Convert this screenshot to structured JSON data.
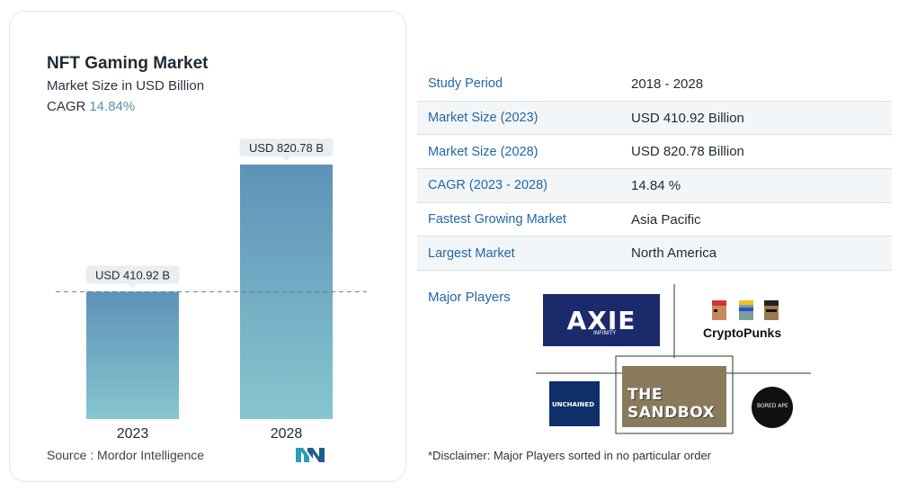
{
  "card": {
    "title": "NFT Gaming Market",
    "subtitle": "Market Size in USD Billion",
    "cagr_label": "CAGR",
    "cagr_value": "14.84%",
    "source": "Source :  Mordor Intelligence"
  },
  "chart_data": {
    "type": "bar",
    "categories": [
      "2023",
      "2028"
    ],
    "values": [
      410.92,
      820.78
    ],
    "data_labels": [
      "USD 410.92 B",
      "USD 820.78 B"
    ],
    "title": "NFT Gaming Market",
    "subtitle": "Market Size in USD Billion",
    "xlabel": "",
    "ylabel": "",
    "ylim": [
      0,
      820.78
    ],
    "grid": false,
    "reference_line": 410.92,
    "colors": {
      "bar_top": "#5e92b8",
      "bar_bottom": "#86c6cf",
      "label_bg": "#e9eef2",
      "ref_line": "#5d7f96"
    }
  },
  "table": {
    "rows": [
      {
        "key": "Study Period",
        "value": "2018 - 2028"
      },
      {
        "key": "Market Size (2023)",
        "value": "USD 410.92 Billion"
      },
      {
        "key": "Market Size (2028)",
        "value": "USD 820.78 Billion"
      },
      {
        "key": "CAGR (2023 - 2028)",
        "value": "14.84 %"
      },
      {
        "key": "Fastest Growing Market",
        "value": "Asia Pacific"
      },
      {
        "key": "Largest Market",
        "value": "North America"
      }
    ]
  },
  "players": {
    "label": "Major Players",
    "logos": {
      "axie": "AXIE",
      "axie_sub": "INFINITY",
      "punks": "CryptoPunks",
      "unchained": "UNCHAINED",
      "sandbox": "THE SANDBOX",
      "bayc": "BORED APE"
    },
    "disclaimer": "*Disclaimer: Major Players sorted in no particular order"
  }
}
